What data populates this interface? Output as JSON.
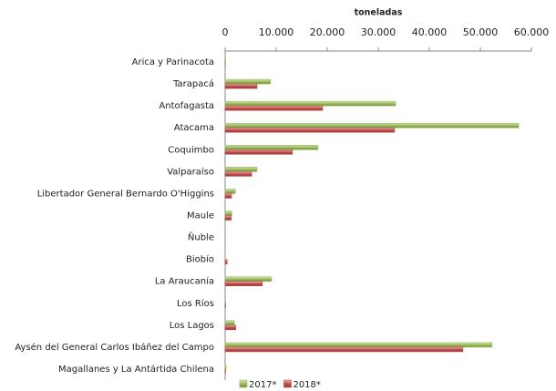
{
  "chart_data": {
    "type": "hbar",
    "xlabel": "toneladas",
    "categories": [
      "Arica y Parinacota",
      "Tarapacá",
      "Antofagasta",
      "Atacama",
      "Coquimbo",
      "Valparaíso",
      "Libertador General Bernardo O'Higgins",
      "Maule",
      "Ñuble",
      "Biobío",
      "La Araucanía",
      "Los Ríos",
      "Los Lagos",
      "Aysén del General Carlos Ibáñez del Campo",
      "Magallanes y La Antártida Chilena"
    ],
    "series": [
      {
        "name": "2017*",
        "color": "#9bbb59",
        "values": [
          100,
          8900,
          33400,
          57500,
          18200,
          6250,
          2000,
          1300,
          0,
          0,
          9100,
          100,
          1800,
          52300,
          200
        ]
      },
      {
        "name": "2018*",
        "color": "#c0504d",
        "values": [
          50,
          6250,
          19100,
          33200,
          13200,
          5200,
          1250,
          1200,
          0,
          400,
          7300,
          100,
          2100,
          46600,
          100
        ]
      }
    ],
    "xlim": [
      0,
      60000
    ],
    "xticks": [
      0,
      {
        "value": 10000,
        "label": "10.000"
      },
      {
        "value": 20000,
        "label": "20.000"
      },
      {
        "value": 30000,
        "label": "30.000"
      },
      {
        "value": 40000,
        "label": "40.000"
      },
      {
        "value": 50000,
        "label": "50.000"
      },
      {
        "value": 60000,
        "label": "60.000"
      }
    ],
    "legend": "bottom"
  }
}
